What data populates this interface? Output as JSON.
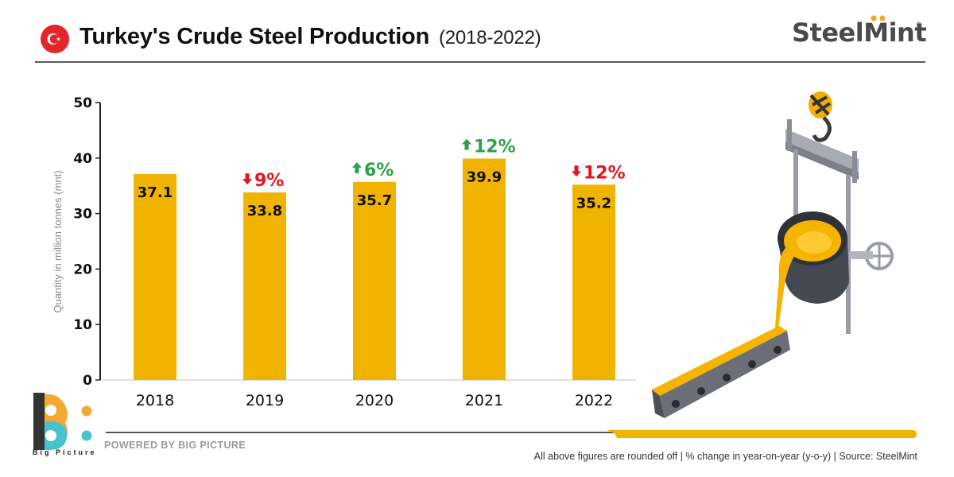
{
  "header": {
    "title": "Turkey's Crude Steel Production",
    "subtitle": "(2018-2022)",
    "flag_icon": "turkey-flag-icon",
    "brand": "SteelMint",
    "brand_registered": "®"
  },
  "colors": {
    "bar": "#F0B400",
    "increase": "#2EA24A",
    "decrease": "#E8141B",
    "axis": "#222222",
    "brand_text": "#4A4A4A",
    "brand_dot": "#F5A623",
    "flag_red": "#E3262B",
    "footer_bar": "#F0B400",
    "logo_orange": "#F5A833",
    "logo_teal": "#46C3CD",
    "logo_dark": "#333333"
  },
  "chart_data": {
    "type": "bar",
    "title": "Turkey's Crude Steel Production (2018-2022)",
    "xlabel": "",
    "ylabel": "Quantity in million tonnes (mnt)",
    "categories": [
      "2018",
      "2019",
      "2020",
      "2021",
      "2022"
    ],
    "values": [
      37.1,
      33.8,
      35.7,
      39.9,
      35.2
    ],
    "value_labels": [
      "37.1",
      "33.8",
      "35.7",
      "39.9",
      "35.2"
    ],
    "yoy_change": [
      null,
      {
        "direction": "down",
        "label": "9%"
      },
      {
        "direction": "up",
        "label": "6%"
      },
      {
        "direction": "up",
        "label": "12%"
      },
      {
        "direction": "down",
        "label": "12%"
      }
    ],
    "ylim": [
      0,
      50
    ],
    "yticks": [
      0,
      10,
      20,
      30,
      40,
      50
    ],
    "grid": false,
    "legend": "none"
  },
  "illustration": {
    "icon": "ladle-pouring-molten-steel-icon"
  },
  "footer": {
    "logo_text": "Big Picture",
    "powered_by": "POWERED BY BIG PICTURE",
    "note": "All above figures are rounded off | % change in year-on-year (y-o-y) |  Source: SteelMint"
  }
}
